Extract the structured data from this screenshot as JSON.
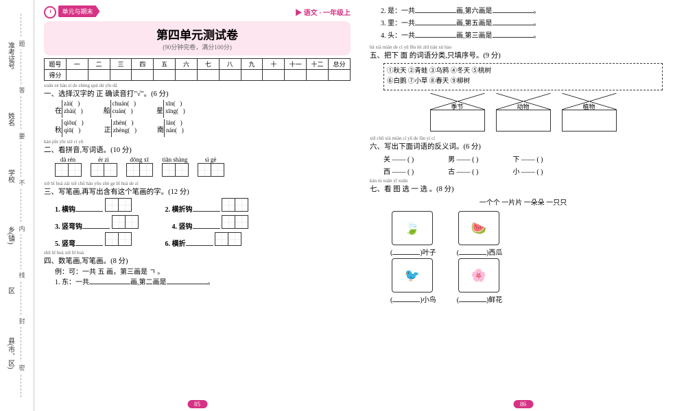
{
  "sidebar": {
    "labels": [
      "准考证号",
      "姓名",
      "学校",
      "乡(镇)",
      "区",
      "县(市、区)"
    ],
    "dash": [
      "题",
      "答",
      "要",
      "不",
      "内",
      "线",
      "封",
      "密"
    ]
  },
  "header": {
    "tag": "单元与期末",
    "subject": "语文 · 一年级上"
  },
  "title": "第四单元测试卷",
  "subtitle": "(90分钟完卷，满分100分)",
  "score": {
    "cols": [
      "题号",
      "一",
      "二",
      "三",
      "四",
      "五",
      "六",
      "七",
      "八",
      "九",
      "十",
      "十一",
      "十二",
      "总分"
    ],
    "row2": "得分"
  },
  "q1": {
    "ruby": "xuǎn zé hàn zì de zhèng què dú yīn dǎ",
    "title": "一、选择汉字的 正 确读音打\"√\"。(6 分)",
    "items": [
      {
        "ch": "在",
        "a": "zài(",
        "b": "zhài("
      },
      {
        "ch": "船",
        "a": "chuán(",
        "b": "cuán("
      },
      {
        "ch": "星",
        "a": "xīn(",
        "b": "xīng("
      },
      {
        "ch": "秋",
        "a": "qiōu(",
        "b": "qiū("
      },
      {
        "ch": "正",
        "a": "zhèn(",
        "b": "zhèng("
      },
      {
        "ch": "南",
        "a": "lán(",
        "b": "nán("
      }
    ]
  },
  "q2": {
    "ruby": "kàn pīn yīn xiě cí yǔ",
    "title": "二、看拼音,写词语。(10 分)",
    "pins": [
      "dà  rén",
      "ér  zi",
      "dōng  xī",
      "tiān  shàng",
      "sì  gè"
    ]
  },
  "q3": {
    "ruby": "xiě bǐ huà zài xiě chū hán yǒu zhè ge bǐ huà de zì",
    "title": "三、写笔画,再写出含有这个笔画的字。(12 分)",
    "items": [
      "1. 横钩",
      "2. 横折钩",
      "3. 竖弯钩",
      "4. 竖钩",
      "5. 竖弯",
      "6. 横折"
    ]
  },
  "q4": {
    "ruby": "shǔ bǐ huà xiě bǐ huà",
    "title": "四、数笔画,写笔画。(8 分)",
    "ex": "例：可：一共  五  画，第三画是  ㄱ  。",
    "items": [
      "1. 东：一共",
      "画,第二画是",
      "2. 是：一共",
      "画,第六画是",
      "3. 里：一共",
      "画,第五画是",
      "4. 头：一共",
      "画,第三画是"
    ]
  },
  "q5": {
    "ruby": "bǎ xià miàn de cí yǔ fēn lèi  zhǐ tián xù hào",
    "title": "五、把下 面 的词语分类,只填序号。(9 分)",
    "words": "①秋天  ②青蛙  ③乌鸦  ④冬天  ⑤桃树\n⑥白鹅  ⑦小草  ⑧春天  ⑨柳树",
    "houses": [
      "季节",
      "动物",
      "植物"
    ]
  },
  "q6": {
    "ruby": "xiě chū xià miàn cí yǔ de fǎn yì cí",
    "title": "六、写出下面词语的反义词。(6 分)",
    "items": [
      "关 —— (",
      "男 —— (",
      "下 —— (",
      "西 —— (",
      "古 —— (",
      "小 —— ("
    ]
  },
  "q7": {
    "ruby": "kàn tú xuǎn yī xuǎn",
    "title": "七、看 图 选 一 选 。(8 分)",
    "opts": "一个个    一片片    一朵朵    一只只",
    "imgs": [
      "🍃",
      "🍉",
      "🐦",
      "🌸"
    ],
    "labs": [
      "叶子",
      "西瓜",
      "小鸟",
      "鲜花"
    ]
  },
  "pages": {
    "l": "85",
    "r": "86"
  }
}
